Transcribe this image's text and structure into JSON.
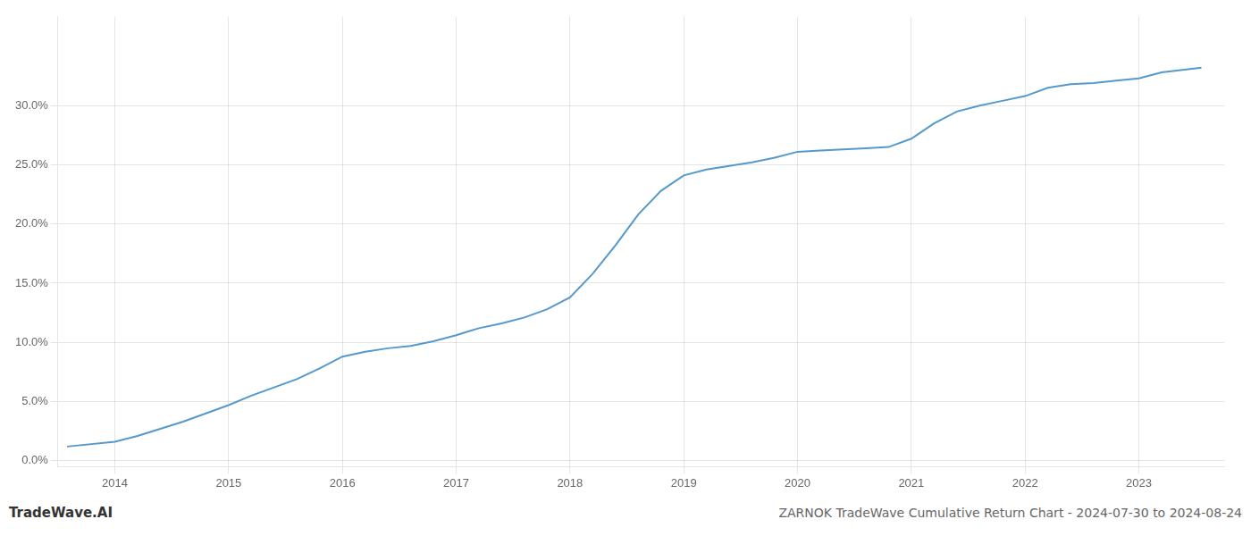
{
  "chart_data": {
    "type": "line",
    "title": "ZARNOK TradeWave Cumulative Return Chart - 2024-07-30 to 2024-08-24",
    "annotations": [
      "TradeWave.AI"
    ],
    "x": [
      2013.58,
      2014.0,
      2014.2,
      2014.4,
      2014.6,
      2014.8,
      2015.0,
      2015.2,
      2015.4,
      2015.6,
      2015.8,
      2016.0,
      2016.2,
      2016.4,
      2016.6,
      2016.8,
      2017.0,
      2017.1,
      2017.2,
      2017.4,
      2017.6,
      2017.8,
      2018.0,
      2018.2,
      2018.4,
      2018.6,
      2018.8,
      2019.0,
      2019.2,
      2019.4,
      2019.6,
      2019.8,
      2020.0,
      2020.2,
      2020.4,
      2020.6,
      2020.8,
      2021.0,
      2021.2,
      2021.4,
      2021.6,
      2021.8,
      2022.0,
      2022.2,
      2022.4,
      2022.6,
      2022.8,
      2023.0,
      2023.2,
      2023.55
    ],
    "values": [
      0.012,
      0.016,
      0.021,
      0.027,
      0.033,
      0.04,
      0.047,
      0.055,
      0.062,
      0.069,
      0.078,
      0.088,
      0.092,
      0.095,
      0.097,
      0.101,
      0.106,
      0.109,
      0.112,
      0.116,
      0.121,
      0.128,
      0.138,
      0.158,
      0.182,
      0.208,
      0.228,
      0.241,
      0.246,
      0.249,
      0.252,
      0.256,
      0.261,
      0.262,
      0.263,
      0.264,
      0.265,
      0.272,
      0.285,
      0.295,
      0.3,
      0.304,
      0.308,
      0.315,
      0.318,
      0.319,
      0.321,
      0.323,
      0.328,
      0.332
    ],
    "color": "#5599cc",
    "xlim": [
      2013.5,
      2023.75
    ],
    "ylim": [
      -0.005,
      0.375
    ],
    "xticks": [
      2014,
      2015,
      2016,
      2017,
      2018,
      2019,
      2020,
      2021,
      2022,
      2023
    ],
    "yticks": [
      {
        "value": 0.0,
        "label": "0.0%"
      },
      {
        "value": 0.05,
        "label": "5.0%"
      },
      {
        "value": 0.1,
        "label": "10.0%"
      },
      {
        "value": 0.15,
        "label": "15.0%"
      },
      {
        "value": 0.2,
        "label": "20.0%"
      },
      {
        "value": 0.25,
        "label": "25.0%"
      },
      {
        "value": 0.3,
        "label": "30.0%"
      }
    ],
    "grid": true
  }
}
